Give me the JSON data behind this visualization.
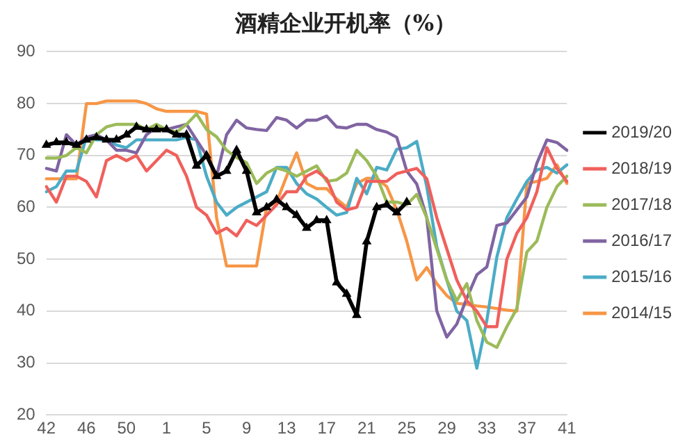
{
  "chart_data": {
    "type": "line",
    "title": "酒精企业开机率（%）",
    "categories": [
      "42",
      null,
      null,
      null,
      "46",
      null,
      null,
      null,
      "50",
      null,
      null,
      null,
      "1",
      null,
      null,
      null,
      "5",
      null,
      null,
      null,
      "9",
      null,
      null,
      null,
      "13",
      null,
      null,
      null,
      "17",
      null,
      null,
      null,
      "21",
      null,
      null,
      null,
      "25",
      null,
      null,
      null,
      "29",
      null,
      null,
      null,
      "33",
      null,
      null,
      null,
      "37",
      null,
      null,
      null,
      "41"
    ],
    "series": [
      {
        "name": "2019/20",
        "color": "#000000",
        "marker": "triangle",
        "values": [
          72,
          72.5,
          72.5,
          72,
          73,
          73.5,
          73,
          73,
          74,
          75.5,
          75,
          75,
          75,
          74,
          74,
          68,
          70,
          66,
          67,
          71,
          67,
          59,
          60,
          61.5,
          60,
          58.5,
          56,
          57.5,
          57.5,
          45.5,
          43.3,
          39.2,
          53.4,
          60,
          60.5,
          59,
          61,
          null,
          null,
          null,
          null,
          null,
          null,
          null,
          null,
          null,
          null,
          null,
          null,
          null,
          null,
          null,
          null
        ]
      },
      {
        "name": "2018/19",
        "color": "#f0605c",
        "values": [
          64,
          61,
          66,
          66,
          65,
          62,
          69,
          70,
          69,
          70,
          67,
          69,
          71,
          70,
          66,
          60,
          58.5,
          55,
          56,
          54.5,
          57.5,
          56.5,
          58.5,
          60.5,
          63,
          63,
          66,
          67,
          65.5,
          61,
          59.5,
          60,
          65,
          65,
          65,
          66.5,
          67,
          67.5,
          65.5,
          58,
          52,
          46,
          42,
          40,
          37,
          37,
          50,
          55,
          58,
          63,
          71.5,
          67.5,
          65
        ]
      },
      {
        "name": "2017/18",
        "color": "#9bbb59",
        "values": [
          69.5,
          69.5,
          70,
          71.5,
          70.5,
          74,
          75.5,
          76,
          76,
          76,
          75,
          76,
          75,
          74.5,
          76,
          78,
          75,
          73.6,
          71,
          69.6,
          68.6,
          64.6,
          66.6,
          67.6,
          67,
          66,
          67,
          68,
          65,
          65.3,
          66.6,
          71,
          69,
          66,
          61,
          61,
          60.5,
          62.5,
          58,
          52,
          46,
          42,
          45.3,
          38.2,
          34,
          33,
          37,
          40.5,
          51.4,
          53.5,
          60,
          64,
          66
        ]
      },
      {
        "name": "2016/17",
        "color": "#8064a2",
        "values": [
          67.5,
          67,
          74,
          72,
          73.5,
          74,
          73,
          71,
          71,
          70.5,
          74,
          75.5,
          75,
          75.5,
          76,
          73,
          70,
          66,
          74,
          76.8,
          75.3,
          75,
          74.8,
          77.3,
          76.8,
          75.3,
          76.8,
          76.8,
          77.6,
          75.5,
          75.3,
          76,
          76,
          75,
          74.5,
          73.5,
          67,
          64.5,
          58,
          40,
          35,
          37.5,
          42.5,
          47,
          48.5,
          56.5,
          57,
          59.5,
          62,
          68.5,
          73,
          72.5,
          71
        ]
      },
      {
        "name": "2015/16",
        "color": "#4bacc6",
        "values": [
          63,
          64,
          67,
          67,
          73.5,
          73,
          73,
          72,
          71.5,
          73,
          73,
          73,
          73,
          73,
          73.5,
          73,
          66,
          61,
          58.5,
          60,
          61,
          62,
          63,
          67.7,
          67.7,
          64.6,
          62.6,
          61.6,
          60,
          58.5,
          59,
          65.6,
          62.6,
          67.7,
          67.2,
          71.2,
          71.5,
          72.7,
          64,
          52.4,
          46,
          40,
          38.2,
          29,
          38.2,
          50.4,
          58,
          61.6,
          65,
          67.2,
          67.7,
          66.6,
          68.2
        ]
      },
      {
        "name": "2014/15",
        "color": "#f79646",
        "values": [
          65.5,
          65.5,
          65.5,
          65.5,
          80,
          80,
          80.5,
          80.5,
          80.5,
          80.5,
          80,
          79,
          78.5,
          78.5,
          78.5,
          78.5,
          78,
          58,
          48.7,
          48.7,
          48.7,
          48.7,
          60,
          61,
          66,
          70.5,
          64.6,
          63.6,
          63.6,
          61.6,
          60,
          64.6,
          65.6,
          65.6,
          64,
          59.5,
          53.5,
          46,
          48.4,
          45.3,
          43,
          41.5,
          41.3,
          41,
          40.8,
          40.5,
          40.2,
          40,
          64.6,
          65,
          65.6,
          68.2,
          64.6
        ]
      }
    ],
    "ylim": [
      20,
      90
    ],
    "yticks": [
      20,
      30,
      40,
      50,
      60,
      70,
      80,
      90
    ],
    "grid": "y",
    "legend": "right"
  }
}
